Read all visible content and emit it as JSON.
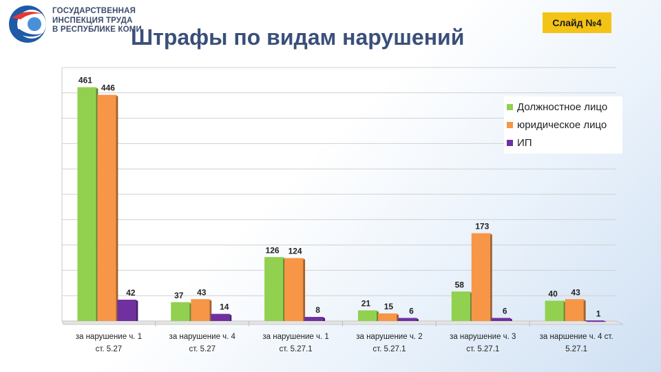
{
  "header": {
    "logo_lines": [
      "ГОСУДАРСТВЕННАЯ",
      "ИНСПЕКЦИЯ ТРУДА",
      "В РЕСПУБЛИКЕ КОМИ"
    ],
    "slide_label": "Слайд №4"
  },
  "colors": {
    "series": [
      "#92d050",
      "#f79646",
      "#7030a0"
    ],
    "badge": "#f3c316",
    "title": "#3a4f7a"
  },
  "chart_data": {
    "type": "bar",
    "title": "Штрафы по  видам нарушений",
    "categories": [
      [
        "за нарушение  ч. 1",
        "ст. 5.27"
      ],
      [
        "за  нарушение ч. 4",
        "ст. 5.27"
      ],
      [
        "за нарушение ч. 1",
        "ст. 5.27.1"
      ],
      [
        "за нарушение ч. 2",
        "ст. 5.27.1"
      ],
      [
        "за нарушение ч. 3",
        "ст. 5.27.1"
      ],
      [
        "за наршение ч. 4 ст.",
        "5.27.1"
      ]
    ],
    "series": [
      {
        "name": "Должностное лицо",
        "values": [
          461,
          37,
          126,
          21,
          58,
          40
        ]
      },
      {
        "name": "юридическое лицо",
        "values": [
          446,
          43,
          124,
          15,
          173,
          43
        ]
      },
      {
        "name": "ИП",
        "values": [
          42,
          14,
          8,
          6,
          6,
          1
        ]
      }
    ],
    "ylim": [
      0,
      500
    ],
    "grid": true,
    "legend": "top-right",
    "data_labels": true
  }
}
